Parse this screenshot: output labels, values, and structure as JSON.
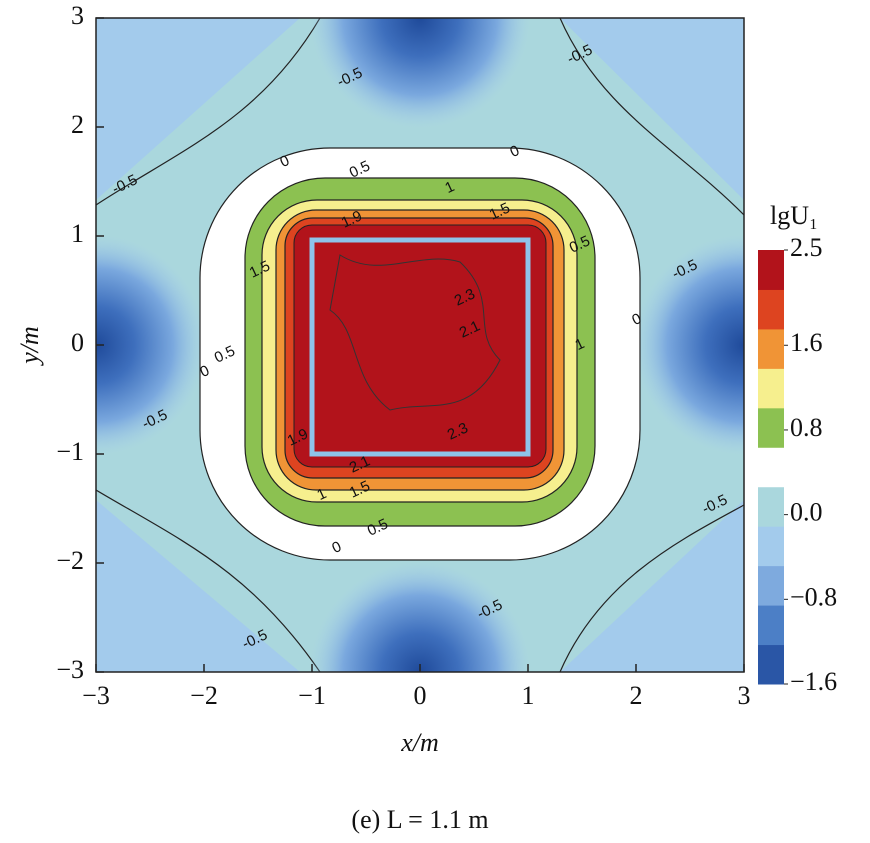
{
  "chart_data": {
    "type": "contour",
    "xlabel": "x/m",
    "ylabel": "y/m",
    "caption": "(e) L = 1.1 m",
    "xlim": [
      -3,
      3
    ],
    "ylim": [
      -3,
      3
    ],
    "xticks": [
      {
        "value": -3,
        "label": "−3"
      },
      {
        "value": -2,
        "label": "−2"
      },
      {
        "value": -1,
        "label": "−1"
      },
      0,
      1,
      2,
      3
    ],
    "yticks": [
      {
        "value": -3,
        "label": "−3"
      },
      {
        "value": -2,
        "label": "−2"
      },
      {
        "value": -1,
        "label": "−1"
      },
      0,
      1,
      2,
      3
    ],
    "contour_levels": [
      -0.5,
      0,
      0.5,
      1,
      1.5,
      1.9,
      2.1,
      2.3
    ],
    "colorbar": {
      "title": "lgU₁",
      "lim": [
        -1.6,
        2.5
      ],
      "ticks": [
        2.5,
        1.6,
        0.8,
        {
          "value": 0,
          "label": "0.0"
        },
        {
          "value": -0.8,
          "label": "−0.8"
        },
        {
          "value": -1.6,
          "label": "−1.6"
        }
      ],
      "colors": [
        "#2a56a6",
        "#4c7fc6",
        "#7eaade",
        "#a3cbec",
        "#aad7dd",
        "#ffffff",
        "#8cc151",
        "#f6ef8e",
        "#f09436",
        "#dd4420",
        "#b2131b"
      ]
    }
  }
}
